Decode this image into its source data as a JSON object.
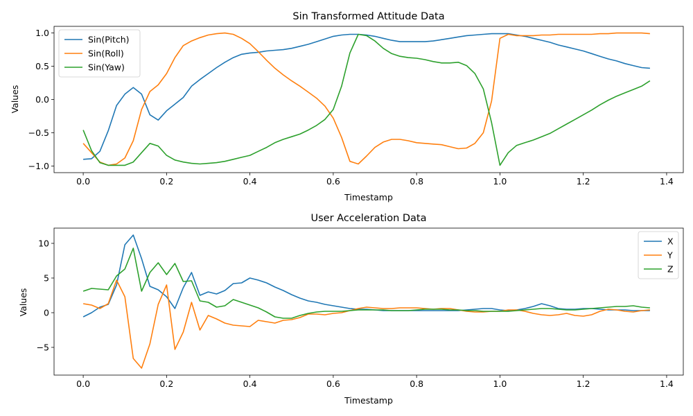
{
  "chart_data": [
    {
      "type": "line",
      "title": "Sin Transformed Attitude Data",
      "xlabel": "Timestamp",
      "ylabel": "Values",
      "xlim": [
        -0.07,
        1.44
      ],
      "ylim": [
        -1.1,
        1.1
      ],
      "xticks": [
        "0.0",
        "0.2",
        "0.4",
        "0.6",
        "0.8",
        "1.0",
        "1.2",
        "1.4"
      ],
      "xtick_values": [
        0.0,
        0.2,
        0.4,
        0.6,
        0.8,
        1.0,
        1.2,
        1.4
      ],
      "yticks": [
        "−1.0",
        "−0.5",
        "0.0",
        "0.5",
        "1.0"
      ],
      "ytick_values": [
        -1.0,
        -0.5,
        0.0,
        0.5,
        1.0
      ],
      "legend_position": "top-left",
      "grid": false,
      "series": [
        {
          "name": "Sin(Pitch)",
          "color": "#1f77b4",
          "x": [
            0,
            0.02,
            0.04,
            0.06,
            0.08,
            0.1,
            0.12,
            0.14,
            0.16,
            0.18,
            0.2,
            0.22,
            0.24,
            0.26,
            0.28,
            0.3,
            0.32,
            0.34,
            0.36,
            0.38,
            0.4,
            0.42,
            0.44,
            0.46,
            0.48,
            0.5,
            0.52,
            0.54,
            0.56,
            0.58,
            0.6,
            0.62,
            0.64,
            0.66,
            0.68,
            0.7,
            0.72,
            0.74,
            0.76,
            0.78,
            0.8,
            0.82,
            0.84,
            0.86,
            0.88,
            0.9,
            0.92,
            0.94,
            0.96,
            0.98,
            1.0,
            1.02,
            1.04,
            1.06,
            1.08,
            1.1,
            1.12,
            1.14,
            1.16,
            1.18,
            1.2,
            1.22,
            1.24,
            1.26,
            1.28,
            1.3,
            1.32,
            1.34,
            1.36
          ],
          "y": [
            -0.9,
            -0.89,
            -0.78,
            -0.47,
            -0.09,
            0.08,
            0.18,
            0.08,
            -0.23,
            -0.31,
            -0.17,
            -0.07,
            0.03,
            0.2,
            0.3,
            0.39,
            0.48,
            0.56,
            0.63,
            0.68,
            0.7,
            0.71,
            0.73,
            0.74,
            0.75,
            0.77,
            0.8,
            0.83,
            0.87,
            0.91,
            0.95,
            0.97,
            0.98,
            0.98,
            0.97,
            0.95,
            0.92,
            0.89,
            0.87,
            0.87,
            0.87,
            0.87,
            0.88,
            0.9,
            0.92,
            0.94,
            0.96,
            0.97,
            0.98,
            0.99,
            0.99,
            0.99,
            0.97,
            0.95,
            0.92,
            0.89,
            0.86,
            0.82,
            0.79,
            0.76,
            0.73,
            0.69,
            0.65,
            0.61,
            0.58,
            0.54,
            0.51,
            0.48,
            0.47
          ]
        },
        {
          "name": "Sin(Roll)",
          "color": "#ff7f0e",
          "x": [
            0,
            0.02,
            0.04,
            0.06,
            0.08,
            0.1,
            0.12,
            0.14,
            0.16,
            0.18,
            0.2,
            0.22,
            0.24,
            0.26,
            0.28,
            0.3,
            0.32,
            0.34,
            0.36,
            0.38,
            0.4,
            0.42,
            0.44,
            0.46,
            0.48,
            0.5,
            0.52,
            0.54,
            0.56,
            0.58,
            0.6,
            0.62,
            0.64,
            0.66,
            0.68,
            0.7,
            0.72,
            0.74,
            0.76,
            0.78,
            0.8,
            0.82,
            0.84,
            0.86,
            0.88,
            0.9,
            0.92,
            0.94,
            0.96,
            0.98,
            1.0,
            1.02,
            1.04,
            1.06,
            1.08,
            1.1,
            1.12,
            1.14,
            1.16,
            1.18,
            1.2,
            1.22,
            1.24,
            1.26,
            1.28,
            1.3,
            1.32,
            1.34,
            1.36
          ],
          "y": [
            -0.66,
            -0.8,
            -0.94,
            -0.99,
            -0.97,
            -0.88,
            -0.62,
            -0.15,
            0.12,
            0.22,
            0.39,
            0.63,
            0.81,
            0.88,
            0.93,
            0.97,
            0.99,
            1.0,
            0.98,
            0.92,
            0.84,
            0.72,
            0.59,
            0.47,
            0.37,
            0.28,
            0.2,
            0.11,
            0.02,
            -0.1,
            -0.28,
            -0.57,
            -0.93,
            -0.97,
            -0.85,
            -0.72,
            -0.64,
            -0.6,
            -0.6,
            -0.62,
            -0.65,
            -0.66,
            -0.67,
            -0.68,
            -0.71,
            -0.74,
            -0.73,
            -0.66,
            -0.5,
            -0.02,
            0.92,
            0.98,
            0.96,
            0.96,
            0.96,
            0.97,
            0.97,
            0.98,
            0.98,
            0.98,
            0.98,
            0.98,
            0.99,
            0.99,
            1.0,
            1.0,
            1.0,
            1.0,
            0.99
          ]
        },
        {
          "name": "Sin(Yaw)",
          "color": "#2ca02c",
          "x": [
            0,
            0.02,
            0.04,
            0.06,
            0.08,
            0.1,
            0.12,
            0.14,
            0.16,
            0.18,
            0.2,
            0.22,
            0.24,
            0.26,
            0.28,
            0.3,
            0.32,
            0.34,
            0.36,
            0.38,
            0.4,
            0.42,
            0.44,
            0.46,
            0.48,
            0.5,
            0.52,
            0.54,
            0.56,
            0.58,
            0.6,
            0.62,
            0.64,
            0.66,
            0.68,
            0.7,
            0.72,
            0.74,
            0.76,
            0.78,
            0.8,
            0.82,
            0.84,
            0.86,
            0.88,
            0.9,
            0.92,
            0.94,
            0.96,
            0.98,
            1.0,
            1.02,
            1.04,
            1.06,
            1.08,
            1.1,
            1.12,
            1.14,
            1.16,
            1.18,
            1.2,
            1.22,
            1.24,
            1.26,
            1.28,
            1.3,
            1.32,
            1.34,
            1.36
          ],
          "y": [
            -0.46,
            -0.77,
            -0.95,
            -0.99,
            -0.99,
            -0.99,
            -0.94,
            -0.8,
            -0.66,
            -0.7,
            -0.84,
            -0.91,
            -0.94,
            -0.96,
            -0.97,
            -0.96,
            -0.95,
            -0.93,
            -0.9,
            -0.87,
            -0.84,
            -0.78,
            -0.72,
            -0.65,
            -0.6,
            -0.56,
            -0.52,
            -0.46,
            -0.39,
            -0.3,
            -0.15,
            0.2,
            0.7,
            0.98,
            0.96,
            0.88,
            0.77,
            0.69,
            0.65,
            0.63,
            0.62,
            0.6,
            0.57,
            0.55,
            0.55,
            0.56,
            0.51,
            0.39,
            0.16,
            -0.35,
            -0.99,
            -0.8,
            -0.69,
            -0.65,
            -0.61,
            -0.56,
            -0.51,
            -0.44,
            -0.37,
            -0.3,
            -0.23,
            -0.16,
            -0.08,
            -0.01,
            0.05,
            0.1,
            0.15,
            0.2,
            0.28
          ]
        }
      ]
    },
    {
      "type": "line",
      "title": "User Acceleration Data",
      "xlabel": "Timestamp",
      "ylabel": "Values",
      "xlim": [
        -0.07,
        1.44
      ],
      "ylim": [
        -9.0,
        12.2
      ],
      "xticks": [
        "0.0",
        "0.2",
        "0.4",
        "0.6",
        "0.8",
        "1.0",
        "1.2",
        "1.4"
      ],
      "xtick_values": [
        0.0,
        0.2,
        0.4,
        0.6,
        0.8,
        1.0,
        1.2,
        1.4
      ],
      "yticks": [
        "−5",
        "0",
        "5",
        "10"
      ],
      "ytick_values": [
        -5,
        0,
        5,
        10
      ],
      "legend_position": "top-right",
      "grid": false,
      "series": [
        {
          "name": "X",
          "color": "#1f77b4",
          "x": [
            0,
            0.02,
            0.04,
            0.06,
            0.08,
            0.1,
            0.12,
            0.14,
            0.16,
            0.18,
            0.2,
            0.22,
            0.24,
            0.26,
            0.28,
            0.3,
            0.32,
            0.34,
            0.36,
            0.38,
            0.4,
            0.42,
            0.44,
            0.46,
            0.48,
            0.5,
            0.52,
            0.54,
            0.56,
            0.58,
            0.6,
            0.62,
            0.64,
            0.66,
            0.68,
            0.7,
            0.72,
            0.74,
            0.76,
            0.78,
            0.8,
            0.82,
            0.84,
            0.86,
            0.88,
            0.9,
            0.92,
            0.94,
            0.96,
            0.98,
            1.0,
            1.02,
            1.04,
            1.06,
            1.08,
            1.1,
            1.12,
            1.14,
            1.16,
            1.18,
            1.2,
            1.22,
            1.24,
            1.26,
            1.28,
            1.3,
            1.32,
            1.34,
            1.36
          ],
          "y": [
            -0.6,
            0.0,
            0.8,
            1.2,
            4.0,
            9.8,
            11.2,
            7.8,
            3.8,
            3.3,
            2.3,
            0.6,
            3.6,
            5.8,
            2.5,
            3.0,
            2.7,
            3.2,
            4.2,
            4.3,
            5.0,
            4.7,
            4.3,
            3.7,
            3.2,
            2.6,
            2.1,
            1.7,
            1.5,
            1.2,
            1.0,
            0.8,
            0.6,
            0.5,
            0.5,
            0.4,
            0.3,
            0.3,
            0.3,
            0.3,
            0.3,
            0.3,
            0.3,
            0.3,
            0.3,
            0.3,
            0.4,
            0.5,
            0.6,
            0.6,
            0.4,
            0.3,
            0.4,
            0.6,
            0.9,
            1.3,
            1.0,
            0.6,
            0.5,
            0.5,
            0.6,
            0.6,
            0.5,
            0.4,
            0.4,
            0.4,
            0.3,
            0.3,
            0.3
          ]
        },
        {
          "name": "Y",
          "color": "#ff7f0e",
          "x": [
            0,
            0.02,
            0.04,
            0.06,
            0.08,
            0.1,
            0.12,
            0.14,
            0.16,
            0.18,
            0.2,
            0.22,
            0.24,
            0.26,
            0.28,
            0.3,
            0.32,
            0.34,
            0.36,
            0.38,
            0.4,
            0.42,
            0.44,
            0.46,
            0.48,
            0.5,
            0.52,
            0.54,
            0.56,
            0.58,
            0.6,
            0.62,
            0.64,
            0.66,
            0.68,
            0.7,
            0.72,
            0.74,
            0.76,
            0.78,
            0.8,
            0.82,
            0.84,
            0.86,
            0.88,
            0.9,
            0.92,
            0.94,
            0.96,
            0.98,
            1.0,
            1.02,
            1.04,
            1.06,
            1.08,
            1.1,
            1.12,
            1.14,
            1.16,
            1.18,
            1.2,
            1.22,
            1.24,
            1.26,
            1.28,
            1.3,
            1.32,
            1.34,
            1.36
          ],
          "y": [
            1.3,
            1.1,
            0.6,
            1.3,
            4.7,
            2.3,
            -6.6,
            -8.0,
            -4.5,
            1.2,
            4.0,
            -5.3,
            -2.8,
            1.5,
            -2.5,
            -0.4,
            -0.9,
            -1.5,
            -1.8,
            -1.9,
            -2.0,
            -1.1,
            -1.3,
            -1.5,
            -1.1,
            -1.0,
            -0.7,
            -0.2,
            -0.2,
            -0.3,
            -0.1,
            0.0,
            0.3,
            0.6,
            0.8,
            0.7,
            0.6,
            0.6,
            0.7,
            0.7,
            0.7,
            0.6,
            0.5,
            0.6,
            0.6,
            0.4,
            0.2,
            0.1,
            0.1,
            0.2,
            0.2,
            0.4,
            0.4,
            0.2,
            -0.1,
            -0.3,
            -0.4,
            -0.3,
            -0.1,
            -0.4,
            -0.5,
            -0.3,
            0.2,
            0.5,
            0.4,
            0.2,
            0.1,
            0.3,
            0.4
          ]
        },
        {
          "name": "Z",
          "color": "#2ca02c",
          "x": [
            0,
            0.02,
            0.04,
            0.06,
            0.08,
            0.1,
            0.12,
            0.14,
            0.16,
            0.18,
            0.2,
            0.22,
            0.24,
            0.26,
            0.28,
            0.3,
            0.32,
            0.34,
            0.36,
            0.38,
            0.4,
            0.42,
            0.44,
            0.46,
            0.48,
            0.5,
            0.52,
            0.54,
            0.56,
            0.58,
            0.6,
            0.62,
            0.64,
            0.66,
            0.68,
            0.7,
            0.72,
            0.74,
            0.76,
            0.78,
            0.8,
            0.82,
            0.84,
            0.86,
            0.88,
            0.9,
            0.92,
            0.94,
            0.96,
            0.98,
            1.0,
            1.02,
            1.04,
            1.06,
            1.08,
            1.1,
            1.12,
            1.14,
            1.16,
            1.18,
            1.2,
            1.22,
            1.24,
            1.26,
            1.28,
            1.3,
            1.32,
            1.34,
            1.36
          ],
          "y": [
            3.1,
            3.5,
            3.4,
            3.3,
            5.3,
            6.3,
            9.3,
            3.1,
            5.8,
            7.2,
            5.5,
            7.1,
            4.5,
            4.6,
            1.7,
            1.5,
            0.8,
            1.0,
            1.9,
            1.5,
            1.1,
            0.7,
            0.1,
            -0.6,
            -0.8,
            -0.8,
            -0.4,
            -0.1,
            0.1,
            0.2,
            0.2,
            0.2,
            0.3,
            0.4,
            0.4,
            0.4,
            0.4,
            0.3,
            0.3,
            0.3,
            0.4,
            0.5,
            0.5,
            0.5,
            0.4,
            0.4,
            0.3,
            0.3,
            0.2,
            0.2,
            0.2,
            0.2,
            0.3,
            0.4,
            0.5,
            0.6,
            0.6,
            0.5,
            0.4,
            0.4,
            0.5,
            0.6,
            0.7,
            0.8,
            0.9,
            0.9,
            1.0,
            0.8,
            0.7
          ]
        }
      ]
    }
  ]
}
